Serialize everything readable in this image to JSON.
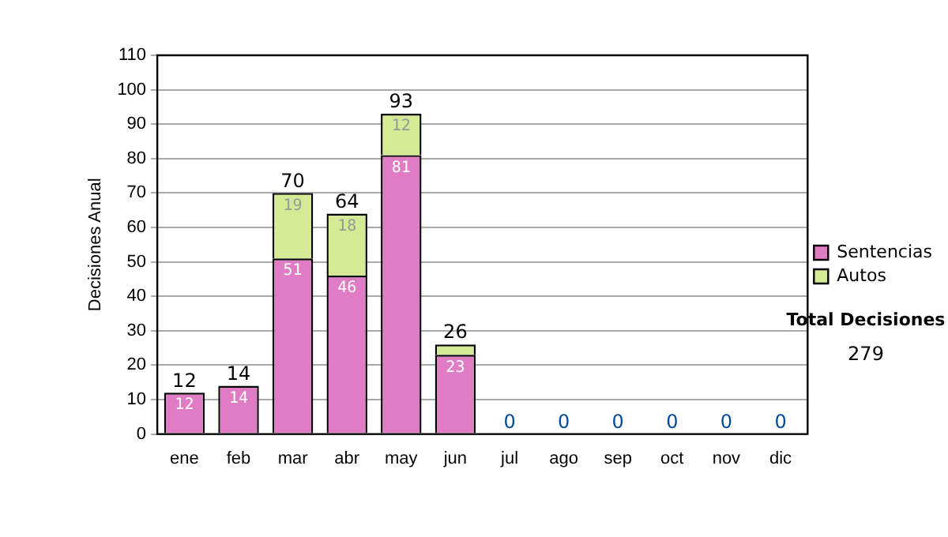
{
  "chart_data": {
    "type": "bar",
    "stacked": true,
    "ylabel": "Decisiones Anual",
    "categories": [
      "ene",
      "feb",
      "mar",
      "abr",
      "may",
      "jun",
      "jul",
      "ago",
      "sep",
      "oct",
      "nov",
      "dic"
    ],
    "series": [
      {
        "name": "Sentencias",
        "color": "#e07cc4",
        "values": [
          12,
          14,
          51,
          46,
          81,
          23,
          0,
          0,
          0,
          0,
          0,
          0
        ],
        "value_labels": [
          "12",
          "14",
          "51",
          "46",
          "81",
          "23",
          null,
          null,
          null,
          null,
          null,
          null
        ]
      },
      {
        "name": "Autos",
        "color": "#d4ea94",
        "values": [
          0,
          0,
          19,
          18,
          12,
          3,
          0,
          0,
          0,
          0,
          0,
          0
        ],
        "value_labels": [
          null,
          null,
          "19",
          "18",
          "12",
          null,
          null,
          null,
          null,
          null,
          null,
          null
        ]
      }
    ],
    "totals": [
      "12",
      "14",
      "70",
      "64",
      "93",
      "26",
      "0",
      "0",
      "0",
      "0",
      "0",
      "0"
    ],
    "ylim": [
      0,
      110
    ],
    "yticks": [
      0,
      10,
      20,
      30,
      40,
      50,
      60,
      70,
      80,
      90,
      100,
      110
    ],
    "grid": "y",
    "legend": "right",
    "annotations": [
      "Total Decisiones",
      "279"
    ]
  }
}
